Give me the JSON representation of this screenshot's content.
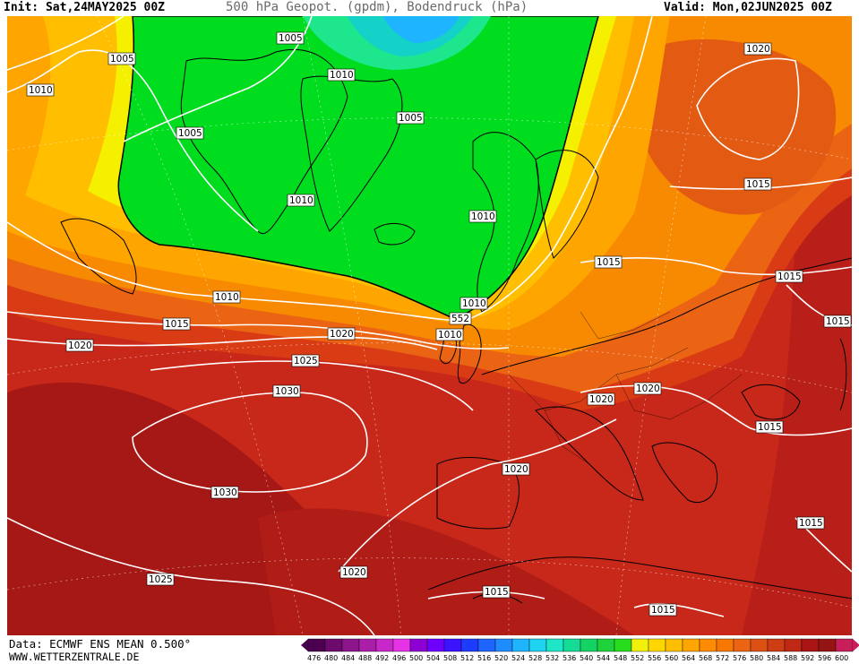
{
  "header": {
    "init": "Init: Sat,24MAY2025 00Z",
    "title": "500 hPa Geopot. (gpdm), Bodendruck (hPa)",
    "valid": "Valid: Mon,02JUN2025 00Z"
  },
  "footer": {
    "data_source": "Data: ECMWF ENS MEAN 0.500°",
    "website": "WWW.WETTERZENTRALE.DE"
  },
  "legend": {
    "values": [
      "476",
      "480",
      "484",
      "488",
      "492",
      "496",
      "500",
      "504",
      "508",
      "512",
      "516",
      "520",
      "524",
      "528",
      "532",
      "536",
      "540",
      "544",
      "548",
      "552",
      "556",
      "560",
      "564",
      "568",
      "572",
      "576",
      "580",
      "584",
      "588",
      "592",
      "596",
      "600"
    ],
    "colors": [
      "#4b0050",
      "#6e0a6e",
      "#8c148c",
      "#aa1eaa",
      "#c828c8",
      "#e632e6",
      "#8c00d2",
      "#6e00ff",
      "#3c14ff",
      "#1e3cff",
      "#1e64ff",
      "#1e8cff",
      "#1eb4ff",
      "#1ed2f0",
      "#1ee6c8",
      "#14dc96",
      "#14d264",
      "#1ed23c",
      "#28dc1e",
      "#f0f00a",
      "#ffd700",
      "#ffbe00",
      "#ffa500",
      "#ff8c00",
      "#f77800",
      "#eb6414",
      "#dc5014",
      "#cd3c14",
      "#be2814",
      "#aa1414",
      "#961414",
      "#c81e5a"
    ]
  },
  "map_labels": {
    "isobars": [
      "1005",
      "1005",
      "1005",
      "1010",
      "1010",
      "1005",
      "1010",
      "1010",
      "1010",
      "1020",
      "1015",
      "1015",
      "1015",
      "1015",
      "1010",
      "1015",
      "1020",
      "1020",
      "1025",
      "1030",
      "1030",
      "1020",
      "1020",
      "1025",
      "1020",
      "1015",
      "1015",
      "1015",
      "1015",
      "1020"
    ],
    "geopotential": "552"
  },
  "colors": {
    "isobar": "#ffffff",
    "coastline": "#000000",
    "background": "#ffffff"
  }
}
